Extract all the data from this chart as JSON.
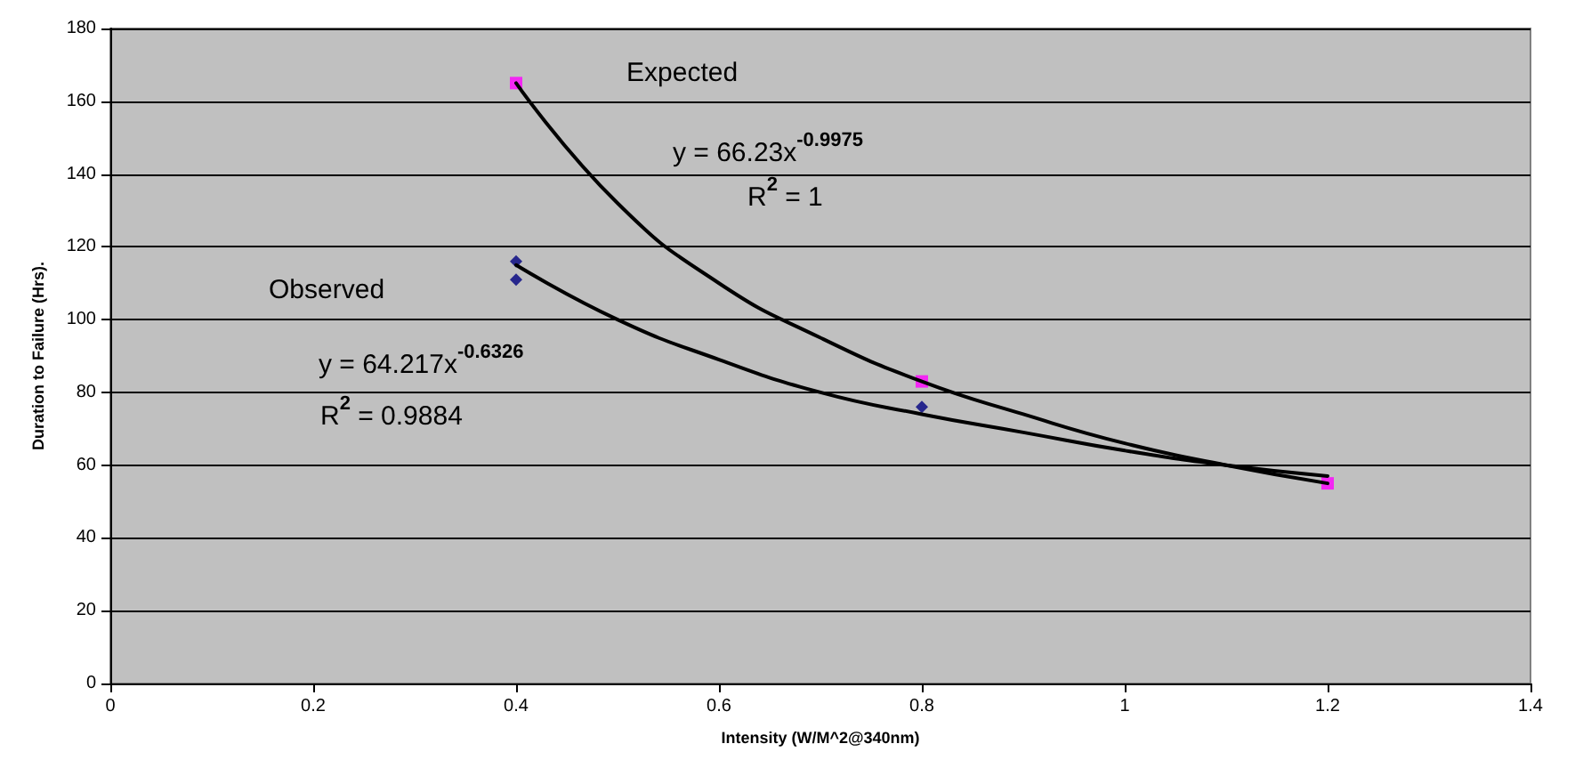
{
  "chart_data": {
    "type": "scatter",
    "xlabel": "Intensity (W/M^2@340nm)",
    "ylabel": "Duration to Failure (Hrs).",
    "xlim": [
      0,
      1.4
    ],
    "xticks": [
      0,
      0.2,
      0.4,
      0.6,
      0.8,
      1,
      1.2,
      1.4
    ],
    "ylim": [
      0,
      180
    ],
    "yticks": [
      0,
      20,
      40,
      60,
      80,
      100,
      120,
      140,
      160,
      180
    ],
    "grid": "y",
    "series": [
      {
        "type": "line",
        "color": "#000000",
        "marker": "none",
        "line_style": "solid",
        "x": [
          0.4,
          0.5,
          0.6,
          0.7,
          0.8,
          0.9,
          1.0,
          1.1,
          1.2
        ],
        "values": [
          165,
          132,
          110,
          95,
          83,
          74,
          66,
          60,
          55
        ]
      },
      {
        "type": "line",
        "color": "#000000",
        "marker": "none",
        "line_style": "solid",
        "x": [
          0.4,
          0.5,
          0.6,
          0.7,
          0.8,
          0.9,
          1.0,
          1.1,
          1.2
        ],
        "values": [
          115,
          100,
          89,
          80,
          74,
          69,
          64,
          60,
          57
        ]
      },
      {
        "type": "scatter",
        "color": "#000080",
        "marker": "diamond",
        "x": [
          0.4,
          0.4,
          0.8
        ],
        "values": [
          116,
          111,
          76
        ]
      },
      {
        "type": "scatter",
        "color": "#ff00ff",
        "marker": "square",
        "x": [
          0.4,
          0.8,
          1.2
        ],
        "values": [
          165,
          83,
          55
        ]
      }
    ],
    "annotations": [
      "Expected",
      "y = 66.23x$^{-0.9975}$",
      "R$^{2}$ = 1",
      "Observed",
      "y = 64.217x$^{-0.6326}$",
      "R$^{2}$ = 0.9884"
    ]
  }
}
